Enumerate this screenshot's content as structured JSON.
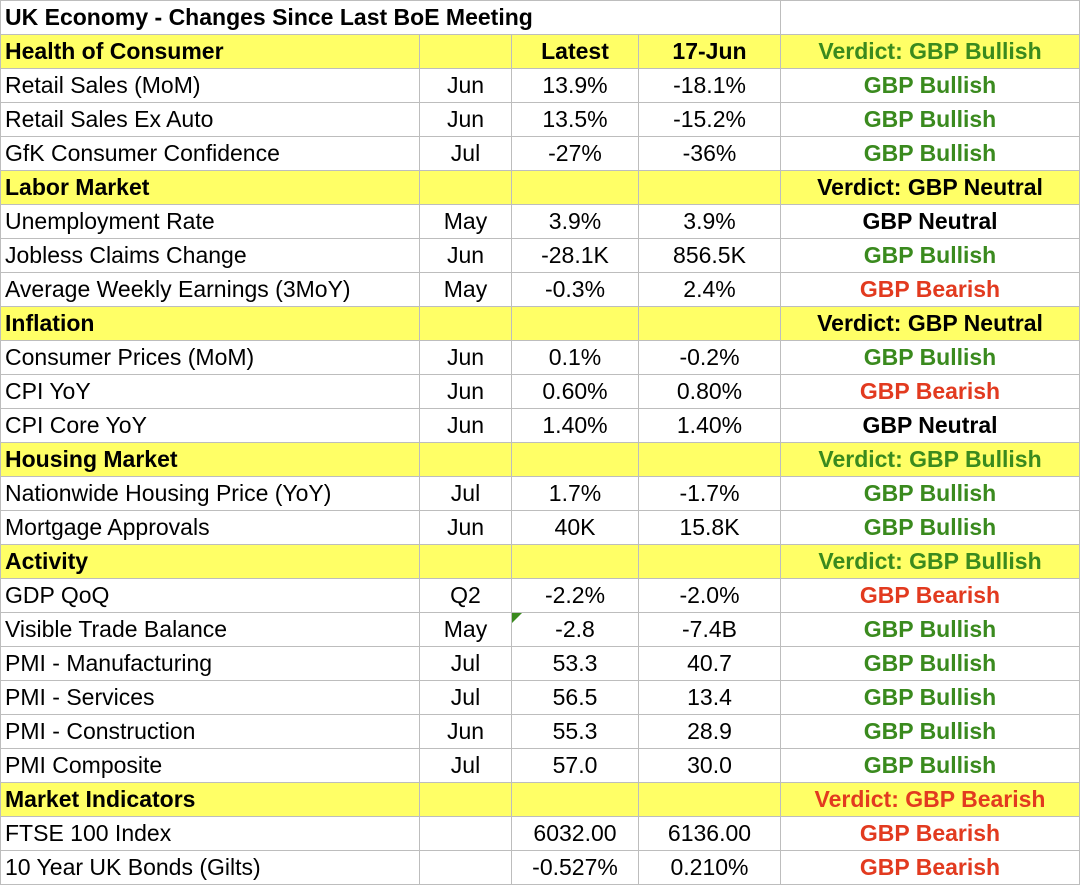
{
  "sheet": {
    "title": "UK Economy - Changes Since Last BoE Meeting",
    "colors": {
      "header_fill": "#ffff66",
      "bullish": "#3a8a1e",
      "bearish": "#e23a1f",
      "neutral": "#000000",
      "grid": "#bdbdbd"
    },
    "columns": {
      "latest": "Latest",
      "prev": "17-Jun"
    },
    "rows": [
      {
        "type": "section",
        "name": "Health of Consumer",
        "latest": "Latest",
        "prev": "17-Jun",
        "verdict": "Verdict: GBP Bullish",
        "tone": "bullish"
      },
      {
        "type": "data",
        "name": "Retail Sales (MoM)",
        "period": "Jun",
        "latest": "13.9%",
        "prev": "-18.1%",
        "verdict": "GBP Bullish",
        "tone": "bullish"
      },
      {
        "type": "data",
        "name": "Retail Sales Ex Auto",
        "period": "Jun",
        "latest": "13.5%",
        "prev": "-15.2%",
        "verdict": "GBP Bullish",
        "tone": "bullish"
      },
      {
        "type": "data",
        "name": "GfK Consumer Confidence",
        "period": "Jul",
        "latest": "-27%",
        "prev": "-36%",
        "verdict": "GBP Bullish",
        "tone": "bullish"
      },
      {
        "type": "section",
        "name": "Labor Market",
        "latest": "",
        "prev": "",
        "verdict": "Verdict: GBP Neutral",
        "tone": "neutral"
      },
      {
        "type": "data",
        "name": "Unemployment Rate",
        "period": "May",
        "latest": "3.9%",
        "prev": "3.9%",
        "verdict": "GBP Neutral",
        "tone": "neutral"
      },
      {
        "type": "data",
        "name": "Jobless Claims Change",
        "period": "Jun",
        "latest": "-28.1K",
        "prev": "856.5K",
        "verdict": "GBP Bullish",
        "tone": "bullish"
      },
      {
        "type": "data",
        "name": "Average Weekly Earnings (3MoY)",
        "period": "May",
        "latest": "-0.3%",
        "prev": "2.4%",
        "verdict": "GBP Bearish",
        "tone": "bearish"
      },
      {
        "type": "section",
        "name": "Inflation",
        "latest": "",
        "prev": "",
        "verdict": "Verdict: GBP Neutral",
        "tone": "neutral"
      },
      {
        "type": "data",
        "name": "Consumer Prices (MoM)",
        "period": "Jun",
        "latest": "0.1%",
        "prev": "-0.2%",
        "verdict": "GBP Bullish",
        "tone": "bullish"
      },
      {
        "type": "data",
        "name": "CPI YoY",
        "period": "Jun",
        "latest": "0.60%",
        "prev": "0.80%",
        "verdict": "GBP Bearish",
        "tone": "bearish"
      },
      {
        "type": "data",
        "name": "CPI Core YoY",
        "period": "Jun",
        "latest": "1.40%",
        "prev": "1.40%",
        "verdict": "GBP Neutral",
        "tone": "neutral"
      },
      {
        "type": "section",
        "name": "Housing Market",
        "latest": "",
        "prev": "",
        "verdict": "Verdict: GBP Bullish",
        "tone": "bullish"
      },
      {
        "type": "data",
        "name": "Nationwide Housing Price (YoY)",
        "period": "Jul",
        "latest": "1.7%",
        "prev": "-1.7%",
        "verdict": "GBP Bullish",
        "tone": "bullish"
      },
      {
        "type": "data",
        "name": "Mortgage Approvals",
        "period": "Jun",
        "latest": "40K",
        "prev": "15.8K",
        "verdict": "GBP Bullish",
        "tone": "bullish"
      },
      {
        "type": "section",
        "name": "Activity",
        "latest": "",
        "prev": "",
        "verdict": "Verdict: GBP Bullish",
        "tone": "bullish"
      },
      {
        "type": "data",
        "name": "GDP QoQ",
        "period": "Q2",
        "latest": "-2.2%",
        "prev": "-2.0%",
        "verdict": "GBP Bearish",
        "tone": "bearish"
      },
      {
        "type": "data",
        "name": "Visible Trade Balance",
        "period": "May",
        "latest": "-2.8",
        "prev": "-7.4B",
        "verdict": "GBP Bullish",
        "tone": "bullish",
        "note": true
      },
      {
        "type": "data",
        "name": "PMI - Manufacturing",
        "period": "Jul",
        "latest": "53.3",
        "prev": "40.7",
        "verdict": "GBP Bullish",
        "tone": "bullish"
      },
      {
        "type": "data",
        "name": "PMI - Services",
        "period": "Jul",
        "latest": "56.5",
        "prev": "13.4",
        "verdict": "GBP Bullish",
        "tone": "bullish"
      },
      {
        "type": "data",
        "name": "PMI - Construction",
        "period": "Jun",
        "latest": "55.3",
        "prev": "28.9",
        "verdict": "GBP Bullish",
        "tone": "bullish"
      },
      {
        "type": "data",
        "name": "PMI Composite",
        "period": "Jul",
        "latest": "57.0",
        "prev": "30.0",
        "verdict": "GBP Bullish",
        "tone": "bullish"
      },
      {
        "type": "section",
        "name": "Market Indicators",
        "latest": "",
        "prev": "",
        "verdict": "Verdict: GBP Bearish",
        "tone": "bearish"
      },
      {
        "type": "data",
        "name": "FTSE 100 Index",
        "period": "",
        "latest": "6032.00",
        "prev": "6136.00",
        "verdict": "GBP Bearish",
        "tone": "bearish"
      },
      {
        "type": "data",
        "name": "10 Year UK Bonds (Gilts)",
        "period": "",
        "latest": "-0.527%",
        "prev": "0.210%",
        "verdict": "GBP Bearish",
        "tone": "bearish"
      }
    ]
  }
}
